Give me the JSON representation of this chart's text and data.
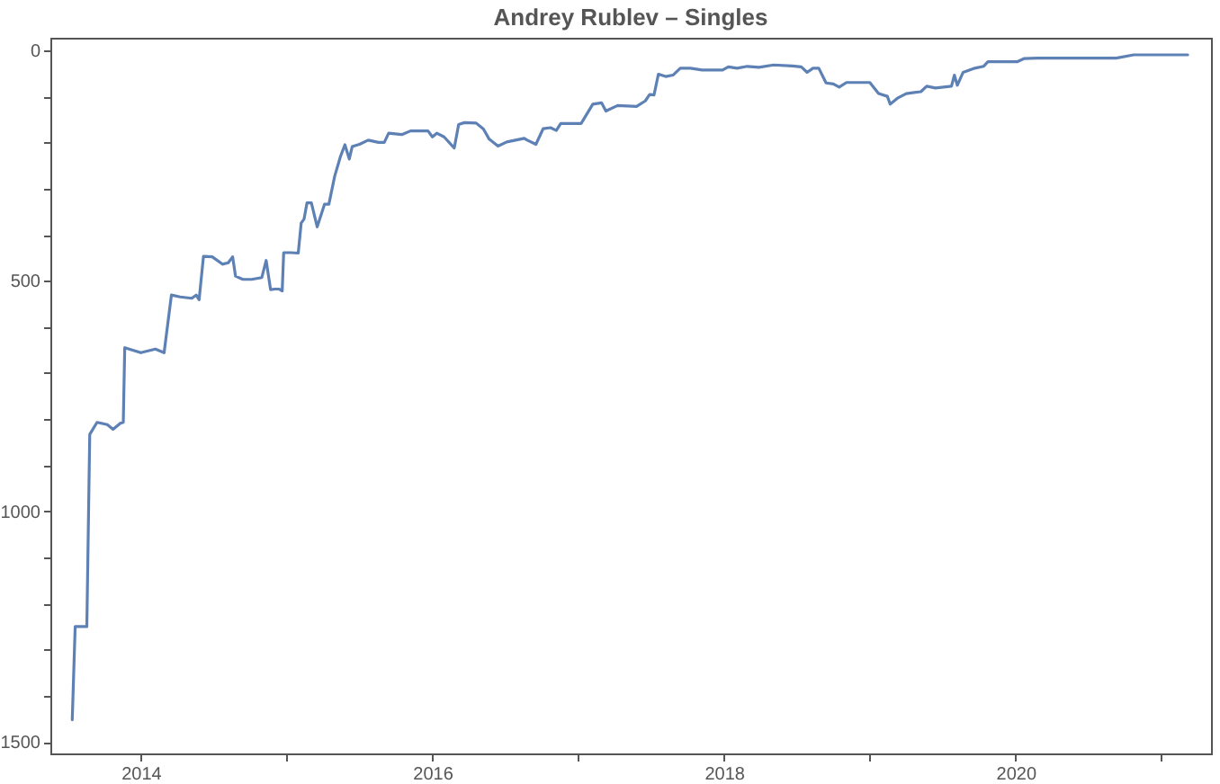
{
  "chart_data": {
    "type": "line",
    "title": "Andrey Rublev – Singles",
    "x": [
      2013.53,
      2013.55,
      2013.63,
      2013.65,
      2013.7,
      2013.77,
      2013.81,
      2013.86,
      2013.88,
      2013.89,
      2014.0,
      2014.1,
      2014.16,
      2014.21,
      2014.27,
      2014.35,
      2014.38,
      2014.4,
      2014.43,
      2014.49,
      2014.56,
      2014.6,
      2014.63,
      2014.65,
      2014.7,
      2014.76,
      2014.83,
      2014.86,
      2014.89,
      2014.92,
      2014.95,
      2014.97,
      2014.98,
      2015.03,
      2015.08,
      2015.1,
      2015.12,
      2015.14,
      2015.17,
      2015.21,
      2015.26,
      2015.29,
      2015.33,
      2015.37,
      2015.4,
      2015.43,
      2015.45,
      2015.5,
      2015.56,
      2015.63,
      2015.67,
      2015.7,
      2015.79,
      2015.85,
      2015.97,
      2016.0,
      2016.03,
      2016.08,
      2016.15,
      2016.18,
      2016.22,
      2016.3,
      2016.35,
      2016.39,
      2016.45,
      2016.51,
      2016.57,
      2016.63,
      2016.65,
      2016.71,
      2016.76,
      2016.81,
      2016.85,
      2016.88,
      2017.02,
      2017.1,
      2017.16,
      2017.19,
      2017.27,
      2017.4,
      2017.46,
      2017.49,
      2017.52,
      2017.55,
      2017.6,
      2017.65,
      2017.7,
      2017.77,
      2017.85,
      2017.99,
      2018.03,
      2018.09,
      2018.16,
      2018.24,
      2018.34,
      2018.47,
      2018.53,
      2018.57,
      2018.61,
      2018.65,
      2018.7,
      2018.75,
      2018.79,
      2018.84,
      2019.0,
      2019.06,
      2019.12,
      2019.14,
      2019.19,
      2019.25,
      2019.35,
      2019.39,
      2019.45,
      2019.56,
      2019.58,
      2019.6,
      2019.64,
      2019.72,
      2019.78,
      2019.81,
      2020.01,
      2020.06,
      2020.15,
      2020.69,
      2020.81,
      2021.18
    ],
    "series": [
      {
        "color": "#5e81b5",
        "values": [
          1452,
          1250,
          1250,
          833,
          807,
          812,
          822,
          809,
          807,
          645,
          656,
          648,
          656,
          531,
          535,
          538,
          531,
          541,
          447,
          448,
          464,
          461,
          448,
          490,
          497,
          497,
          493,
          456,
          519,
          518,
          518,
          522,
          439,
          439,
          440,
          375,
          366,
          331,
          331,
          383,
          334,
          334,
          273,
          230,
          205,
          236,
          209,
          204,
          195,
          200,
          200,
          180,
          183,
          175,
          175,
          188,
          180,
          188,
          212,
          161,
          157,
          158,
          171,
          193,
          208,
          199,
          195,
          191,
          195,
          204,
          170,
          168,
          174,
          159,
          159,
          117,
          114,
          132,
          120,
          122,
          110,
          96,
          97,
          52,
          57,
          54,
          39,
          39,
          43,
          43,
          36,
          39,
          35,
          37,
          32,
          34,
          36,
          48,
          39,
          39,
          71,
          73,
          80,
          70,
          70,
          94,
          100,
          117,
          104,
          94,
          90,
          78,
          82,
          78,
          54,
          76,
          48,
          39,
          35,
          25,
          25,
          18,
          17,
          17,
          10,
          10
        ]
      }
    ],
    "xlim": [
      2013.38,
      2021.34
    ],
    "xticks": [
      2014,
      {
        "value": 2015,
        "label": null
      },
      2016,
      {
        "value": 2017,
        "label": null
      },
      2018,
      {
        "value": 2019,
        "label": null
      },
      2020,
      {
        "value": 2021,
        "label": null
      }
    ],
    "ylim": [
      1525,
      -27
    ],
    "yticks": [
      0,
      {
        "value": 100,
        "label": null
      },
      {
        "value": 200,
        "label": null
      },
      {
        "value": 300,
        "label": null
      },
      {
        "value": 400,
        "label": null
      },
      500,
      {
        "value": 600,
        "label": null
      },
      {
        "value": 700,
        "label": null
      },
      {
        "value": 800,
        "label": null
      },
      {
        "value": 900,
        "label": null
      },
      1000,
      {
        "value": 1100,
        "label": null
      },
      {
        "value": 1200,
        "label": null
      },
      {
        "value": 1300,
        "label": null
      },
      {
        "value": 1400,
        "label": null
      },
      1500
    ],
    "grid": false,
    "marker": "none",
    "line_style": "solid"
  }
}
